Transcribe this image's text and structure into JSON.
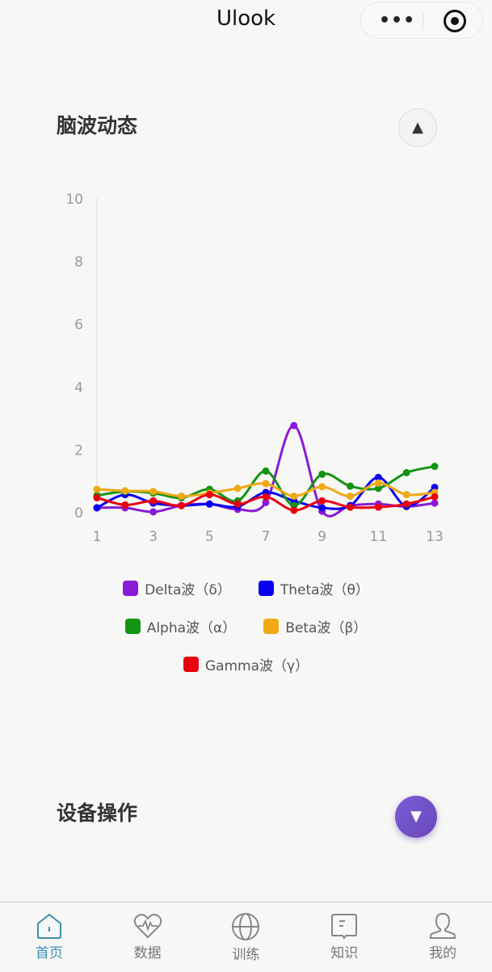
{
  "nav": {
    "title": "Ulook",
    "more": "•••"
  },
  "section1": {
    "title": "脑波动态",
    "toggle": "▲"
  },
  "section2": {
    "title": "设备操作",
    "toggle": "▼"
  },
  "chart_data": {
    "type": "line",
    "x": [
      1,
      2,
      3,
      4,
      5,
      6,
      7,
      8,
      9,
      10,
      11,
      12,
      13
    ],
    "x_tick_labels": [
      "1",
      "3",
      "5",
      "7",
      "9",
      "11",
      "13"
    ],
    "y_tick_labels": [
      "0",
      "2",
      "4",
      "6",
      "8",
      "10"
    ],
    "ylim": [
      0,
      10
    ],
    "smooth": true,
    "legend_position": "bottom",
    "series": [
      {
        "name": "Delta波（δ）",
        "color": "#8a1ad6",
        "values": [
          0.13,
          0.13,
          0,
          0.2,
          0.25,
          0.08,
          0.3,
          2.75,
          0.02,
          0.2,
          0.25,
          0.17,
          0.28
        ]
      },
      {
        "name": "Theta波（θ）",
        "color": "#0a00f0",
        "values": [
          0.13,
          0.55,
          0.28,
          0.2,
          0.25,
          0.17,
          0.62,
          0.35,
          0.13,
          0.2,
          1.1,
          0.18,
          0.78
        ]
      },
      {
        "name": "Alpha波（α）",
        "color": "#149414",
        "values": [
          0.52,
          0.65,
          0.6,
          0.45,
          0.72,
          0.35,
          1.3,
          0.2,
          1.2,
          0.82,
          0.75,
          1.25,
          1.45
        ]
      },
      {
        "name": "Beta波（β）",
        "color": "#f0a814",
        "values": [
          0.72,
          0.67,
          0.65,
          0.5,
          0.6,
          0.75,
          0.9,
          0.5,
          0.8,
          0.5,
          0.92,
          0.55,
          0.62
        ]
      },
      {
        "name": "Gamma波（γ）",
        "color": "#e8000e",
        "values": [
          0.45,
          0.22,
          0.35,
          0.2,
          0.55,
          0.25,
          0.48,
          0.05,
          0.35,
          0.15,
          0.15,
          0.25,
          0.48
        ]
      }
    ]
  },
  "tabs": [
    {
      "label": "首页",
      "icon": "home-icon",
      "active": true
    },
    {
      "label": "数据",
      "icon": "heart-pulse-icon"
    },
    {
      "label": "训练",
      "icon": "globe-icon"
    },
    {
      "label": "知识",
      "icon": "message-icon"
    },
    {
      "label": "我的",
      "icon": "user-icon"
    }
  ]
}
